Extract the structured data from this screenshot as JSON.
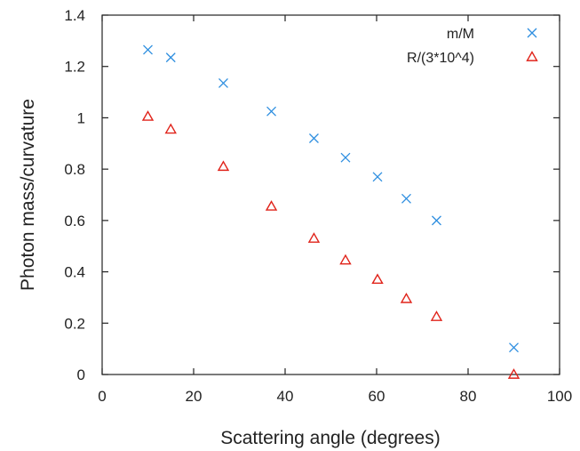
{
  "chart_data": {
    "type": "scatter",
    "xlabel": "Scattering angle (degrees)",
    "ylabel": "Photon mass/curvature",
    "xlim": [
      0,
      100
    ],
    "ylim": [
      0,
      1.4
    ],
    "x_ticks": [
      "0",
      "20",
      "40",
      "60",
      "80",
      "100"
    ],
    "y_ticks": [
      "0",
      "0.2",
      "0.4",
      "0.6",
      "0.8",
      "1",
      "1.2",
      "1.4"
    ],
    "grid": false,
    "legend_position": "top-right",
    "series": [
      {
        "name": "m/M",
        "marker": "x",
        "color": "#2f8fe0",
        "x": [
          10,
          15,
          26.5,
          37,
          46.3,
          53.2,
          60.2,
          66.5,
          73.1,
          90
        ],
        "y": [
          1.265,
          1.235,
          1.135,
          1.025,
          0.92,
          0.845,
          0.77,
          0.685,
          0.6,
          0.105
        ]
      },
      {
        "name": "R/(3*10^4)",
        "marker": "triangle",
        "color": "#e0231a",
        "x": [
          10,
          15,
          26.5,
          37,
          46.3,
          53.2,
          60.2,
          66.5,
          73.1,
          90
        ],
        "y": [
          1.005,
          0.955,
          0.81,
          0.655,
          0.53,
          0.445,
          0.37,
          0.295,
          0.225,
          0.0
        ]
      }
    ]
  }
}
